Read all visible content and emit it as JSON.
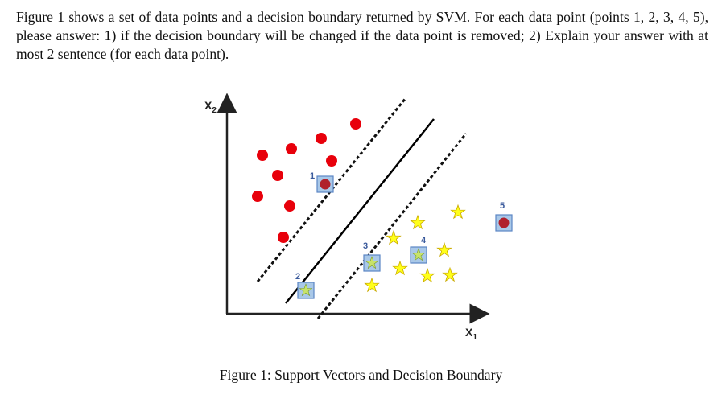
{
  "question": {
    "text": "Figure 1 shows a set of data points and a decision boundary returned by SVM. For each data point (points 1, 2, 3, 4, 5), please answer: 1) if the decision boundary will be changed if the data point is removed; 2) Explain your answer with at most 2 sentence (for each data point)."
  },
  "figure": {
    "caption": "Figure 1: Support Vectors and Decision Boundary",
    "x_axis_label": "X",
    "x_axis_subscript": "1",
    "y_axis_label": "X",
    "y_axis_subscript": "2",
    "point_labels": [
      "1",
      "2",
      "3",
      "4",
      "5"
    ]
  },
  "colors": {
    "red_class": "#e8000b",
    "yellow_class": "#ffff1a",
    "highlight_box_fill": "#a9c8e8",
    "highlight_box_stroke": "#5b86c4",
    "label_blue": "#3a5a9c"
  }
}
